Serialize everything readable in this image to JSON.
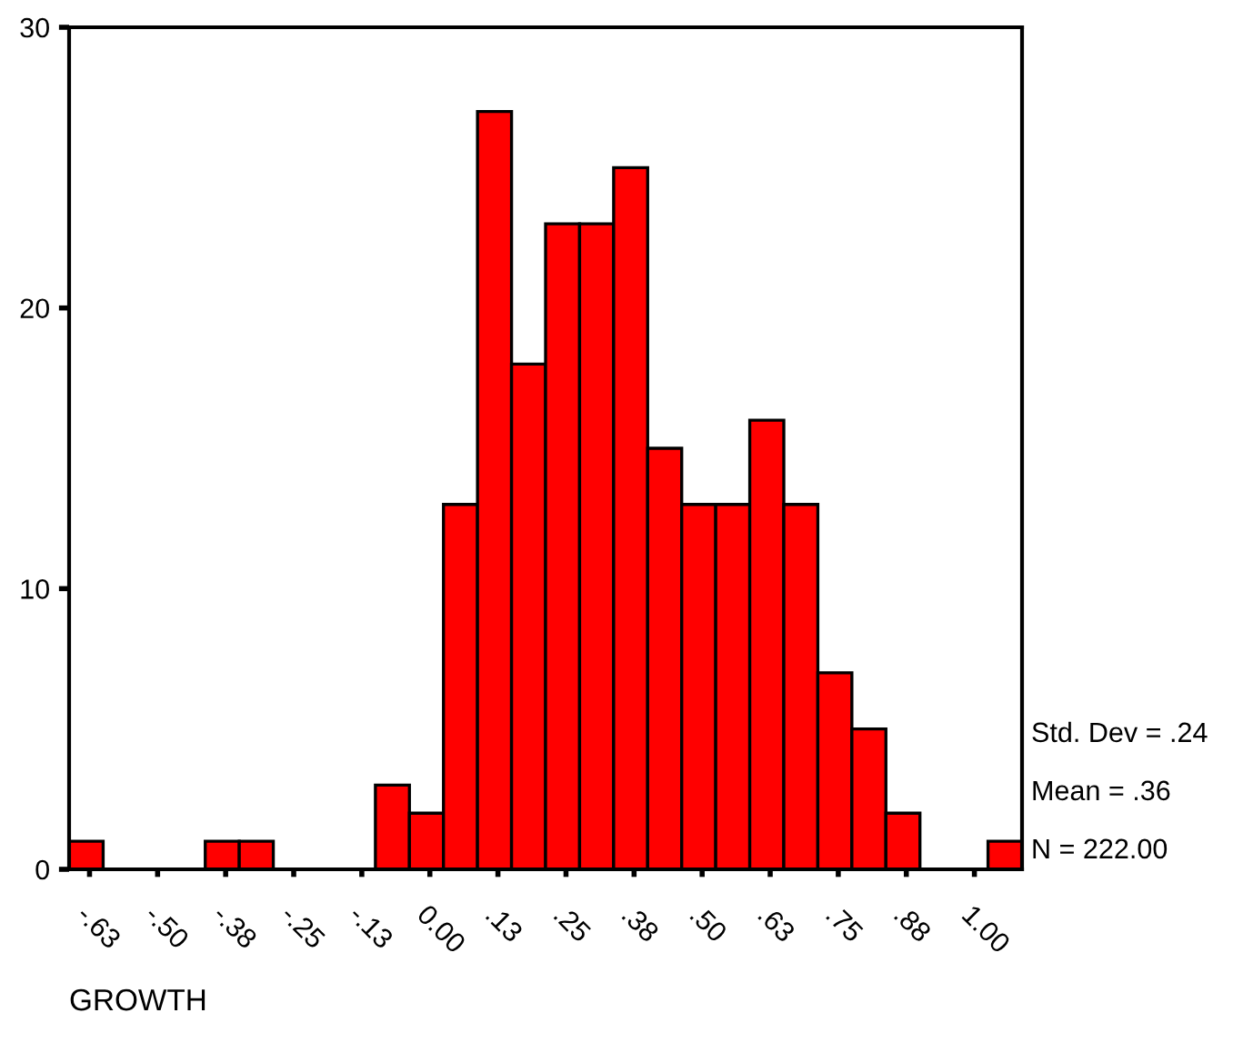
{
  "chart_data": {
    "type": "histogram",
    "xlabel": "GROWTH",
    "bins": [
      -0.6625,
      -0.6,
      -0.5375,
      -0.475,
      -0.4125,
      -0.35,
      -0.2875,
      -0.225,
      -0.1625,
      -0.1,
      -0.0375,
      0.025,
      0.0875,
      0.15,
      0.2125,
      0.275,
      0.3375,
      0.4,
      0.4625,
      0.525,
      0.5875,
      0.65,
      0.7125,
      0.775,
      0.8375,
      0.9,
      0.9625,
      1.025,
      1.0875
    ],
    "values": [
      1,
      0,
      0,
      0,
      1,
      1,
      0,
      0,
      0,
      3,
      2,
      13,
      27,
      18,
      23,
      23,
      25,
      15,
      13,
      13,
      16,
      13,
      7,
      5,
      2,
      0,
      0,
      1
    ],
    "color": "#ff0000",
    "xlim": [
      -0.6625,
      1.0875
    ],
    "ylim": [
      0,
      30
    ],
    "xticks": [
      {
        "value": -0.625,
        "label": "-.63"
      },
      {
        "value": -0.5,
        "label": "-.50"
      },
      {
        "value": -0.375,
        "label": "-.38"
      },
      {
        "value": -0.25,
        "label": "-.25"
      },
      {
        "value": -0.125,
        "label": "-.13"
      },
      {
        "value": 0,
        "label": "0.00"
      },
      {
        "value": 0.125,
        "label": ".13"
      },
      {
        "value": 0.25,
        "label": ".25"
      },
      {
        "value": 0.375,
        "label": ".38"
      },
      {
        "value": 0.5,
        "label": ".50"
      },
      {
        "value": 0.625,
        "label": ".63"
      },
      {
        "value": 0.75,
        "label": ".75"
      },
      {
        "value": 0.875,
        "label": ".88"
      },
      {
        "value": 1.0,
        "label": "1.00"
      }
    ],
    "yticks": [
      0,
      10,
      20,
      30
    ],
    "annotations": [
      "Std. Dev = .24",
      "Mean = .36",
      "N = 222.00"
    ],
    "grid": false,
    "legend": false
  }
}
